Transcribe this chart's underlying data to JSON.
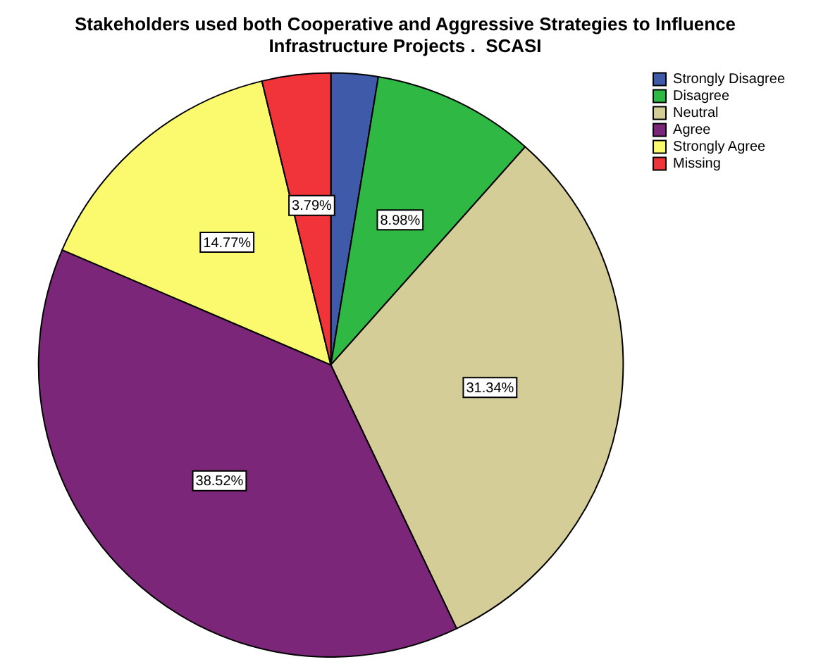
{
  "chart_data": {
    "type": "pie",
    "title": "Stakeholders used both Cooperative and Aggressive Strategies to Influence Infrastructure Projects .  SCASI",
    "categories": [
      "Strongly Disagree",
      "Disagree",
      "Neutral",
      "Agree",
      "Strongly Agree",
      "Missing"
    ],
    "values": [
      2.6,
      8.98,
      31.34,
      38.52,
      14.77,
      3.79
    ],
    "colors": [
      "#3e5aa9",
      "#2fb844",
      "#d4cd98",
      "#7b2679",
      "#fbf96e",
      "#f0343a"
    ],
    "value_labels": [
      null,
      "8.98%",
      "31.34%",
      "38.52%",
      "14.77%",
      "3.79%"
    ],
    "legend": "top right"
  }
}
